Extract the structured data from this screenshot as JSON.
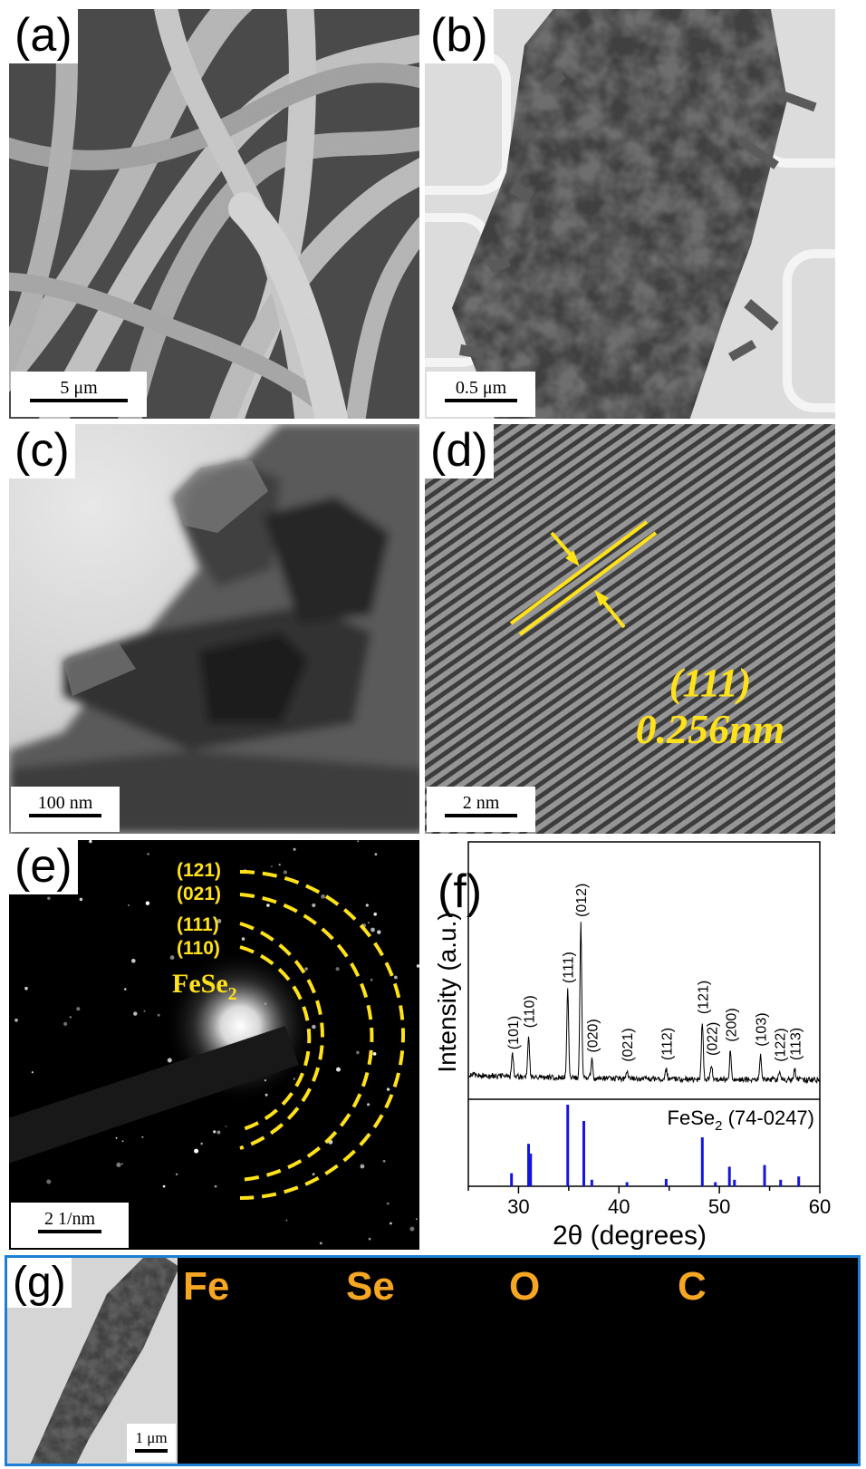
{
  "panel_a": {
    "label": "(a)",
    "scale_bar": "5 μm"
  },
  "panel_b": {
    "label": "(b)",
    "scale_bar": "0.5 μm"
  },
  "panel_c": {
    "label": "(c)",
    "scale_bar": "100 nm"
  },
  "panel_d": {
    "label": "(d)",
    "plane": "(111)",
    "spacing": "0.256nm",
    "scale_bar": "2 nm"
  },
  "panel_e": {
    "label": "(e)",
    "rings": [
      "(121)",
      "(021)",
      "(111)",
      "(110)"
    ],
    "phase": "FeSe",
    "phase_sub": "2",
    "scale_bar": "2 1/nm"
  },
  "panel_f": {
    "label": "(f)"
  },
  "panel_g": {
    "label": "(g)",
    "scale_bar": "1 μm",
    "elements": [
      "Fe",
      "Se",
      "O",
      "C"
    ]
  },
  "colors": {
    "annotation_yellow": "#FFE21A",
    "element_label": "#F5A623",
    "fe_map": "#22EE22",
    "se_map": "#EE22EE",
    "c_map": "#22DDDD",
    "reference_bars": "#1515E0",
    "border_blue": "#1C7FD4"
  },
  "chart_data": {
    "type": "line",
    "xlabel": "2θ (degrees)",
    "ylabel": "Intensity (a.u.)",
    "xlim": [
      25,
      60
    ],
    "xticks": [
      30,
      40,
      50,
      60
    ],
    "grid": false,
    "peaks": [
      {
        "label": "(101)",
        "x": 29.4,
        "intensity": 0.14
      },
      {
        "label": "(110)",
        "x": 31.0,
        "intensity": 0.28
      },
      {
        "label": "(111)",
        "x": 34.9,
        "intensity": 0.57
      },
      {
        "label": "(012)",
        "x": 36.2,
        "intensity": 1.0
      },
      {
        "label": "(020)",
        "x": 37.3,
        "intensity": 0.12
      },
      {
        "label": "(021)",
        "x": 40.8,
        "intensity": 0.06
      },
      {
        "label": "(112)",
        "x": 44.7,
        "intensity": 0.07
      },
      {
        "label": "(121)",
        "x": 48.3,
        "intensity": 0.37
      },
      {
        "label": "(022)",
        "x": 49.2,
        "intensity": 0.1
      },
      {
        "label": "(200)",
        "x": 51.1,
        "intensity": 0.19
      },
      {
        "label": "(103)",
        "x": 54.1,
        "intensity": 0.16
      },
      {
        "label": "(122)",
        "x": 56.0,
        "intensity": 0.06
      },
      {
        "label": "(113)",
        "x": 57.5,
        "intensity": 0.07
      }
    ],
    "reference": {
      "name": "FeSe",
      "name_sub": "2",
      "card": "(74-0247)",
      "x": [
        29.3,
        31.0,
        31.2,
        34.9,
        36.5,
        37.3,
        40.8,
        44.7,
        48.3,
        49.6,
        51.0,
        51.5,
        54.5,
        56.1,
        57.9
      ],
      "intensity": [
        0.16,
        0.52,
        0.4,
        1.0,
        0.8,
        0.08,
        0.05,
        0.09,
        0.6,
        0.05,
        0.24,
        0.08,
        0.26,
        0.08,
        0.12
      ]
    }
  }
}
